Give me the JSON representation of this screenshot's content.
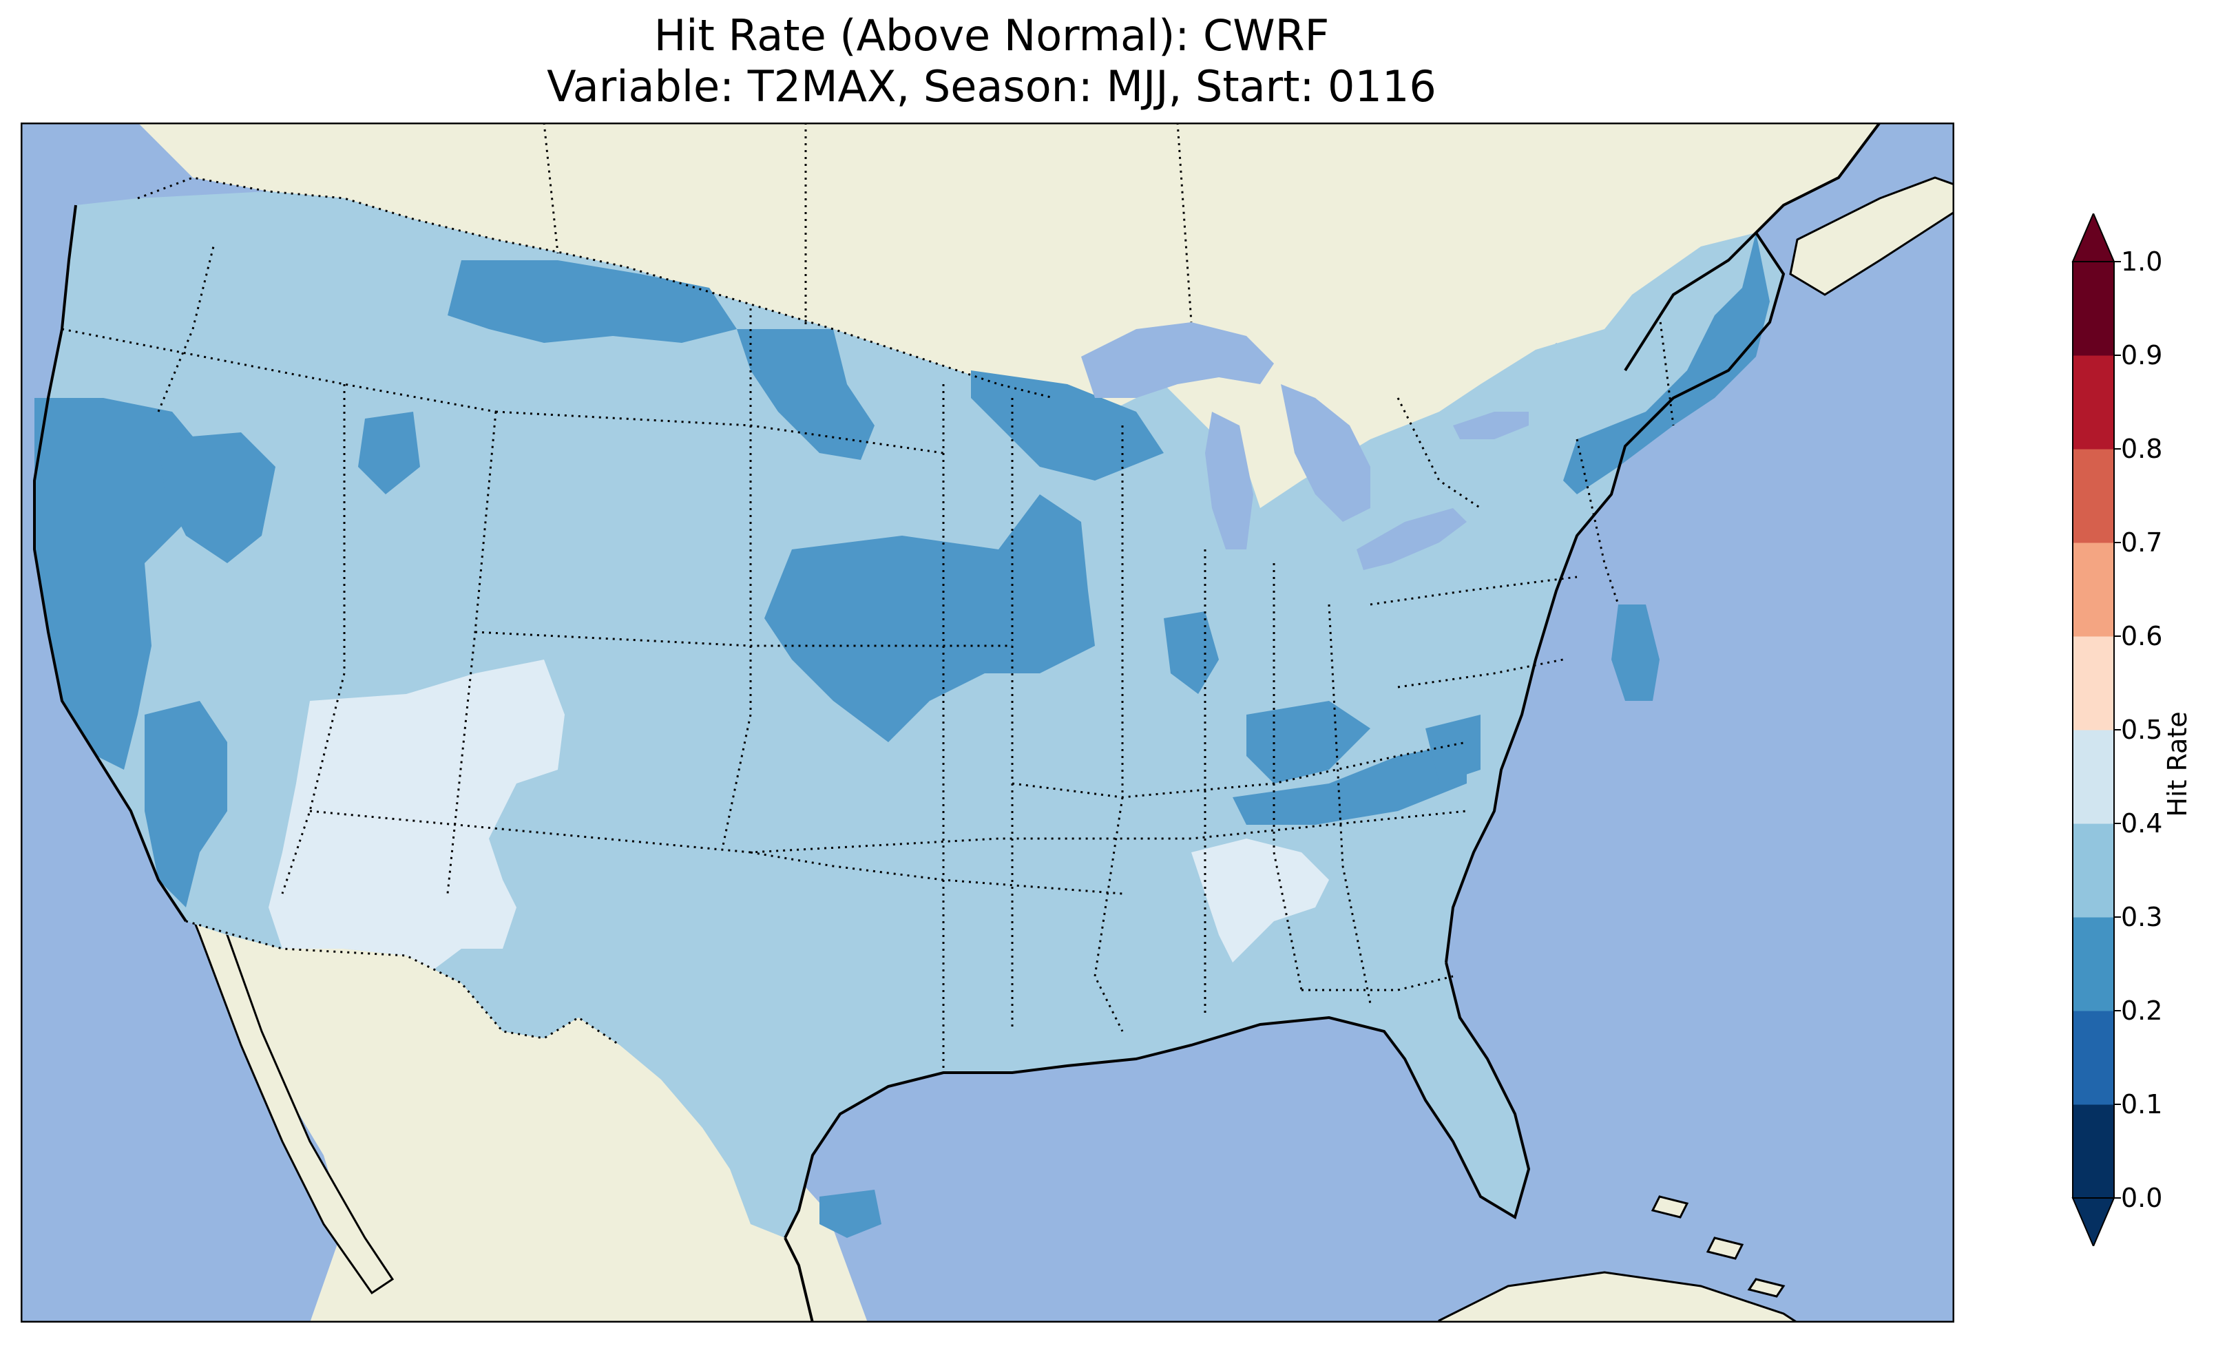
{
  "title": {
    "line1": "Hit Rate (Above Normal): CWRF",
    "line2": "Variable: T2MAX, Season: MJJ, Start: 0116"
  },
  "colorbar": {
    "label": "Hit Rate",
    "ticks": [
      "0.0",
      "0.1",
      "0.2",
      "0.3",
      "0.4",
      "0.5",
      "0.6",
      "0.7",
      "0.8",
      "0.9",
      "1.0"
    ],
    "colors": [
      "#053061",
      "#2166ac",
      "#4393c3",
      "#92c5de",
      "#d1e5f0",
      "#f7f7f7",
      "#fddbc7",
      "#f4a582",
      "#d6604d",
      "#b2182b",
      "#67001f"
    ]
  },
  "map": {
    "ocean_color": "#97b6e1",
    "land_color": "#efefdb",
    "dominant_value_range": "0.3-0.4",
    "secondary_value_range": "0.2-0.3",
    "low_value_range": "0.4-0.5"
  }
}
